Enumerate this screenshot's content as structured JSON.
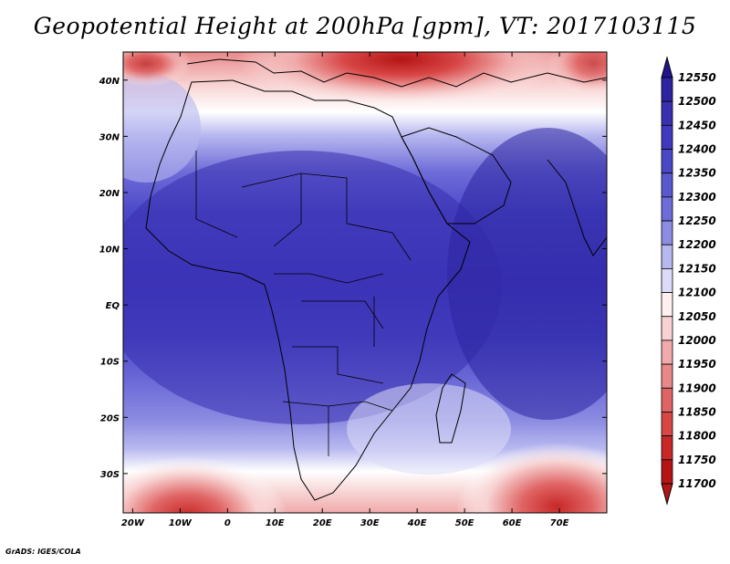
{
  "title": "Geopotential Height at 200hPa [gpm], VT: 2017103115",
  "footer": "GrADS: IGES/COLA",
  "map": {
    "lon_range": [
      -22,
      80
    ],
    "lat_range": [
      -37,
      45
    ],
    "lat_ticks": [
      {
        "label": "40N",
        "value": 40
      },
      {
        "label": "30N",
        "value": 30
      },
      {
        "label": "20N",
        "value": 20
      },
      {
        "label": "10N",
        "value": 10
      },
      {
        "label": "EQ",
        "value": 0
      },
      {
        "label": "10S",
        "value": -10
      },
      {
        "label": "20S",
        "value": -20
      },
      {
        "label": "30S",
        "value": -30
      }
    ],
    "lon_ticks": [
      {
        "label": "20W",
        "value": -20
      },
      {
        "label": "10W",
        "value": -10
      },
      {
        "label": "0",
        "value": 0
      },
      {
        "label": "10E",
        "value": 10
      },
      {
        "label": "20E",
        "value": 20
      },
      {
        "label": "30E",
        "value": 30
      },
      {
        "label": "40E",
        "value": 40
      },
      {
        "label": "50E",
        "value": 50
      },
      {
        "label": "60E",
        "value": 60
      },
      {
        "label": "70E",
        "value": 70
      }
    ]
  },
  "colorbar": {
    "levels": [
      "12550",
      "12500",
      "12450",
      "12400",
      "12350",
      "12300",
      "12250",
      "12200",
      "12150",
      "12100",
      "12050",
      "12000",
      "11950",
      "11900",
      "11850",
      "11800",
      "11750",
      "11700"
    ],
    "colors": [
      "#21148c",
      "#2c24a0",
      "#3830b0",
      "#4038be",
      "#4b48c8",
      "#5a58d0",
      "#6e6cd8",
      "#8c8ce2",
      "#b8b8f0",
      "#dcdcf8",
      "#fff0f0",
      "#f8d2d2",
      "#f0aaaa",
      "#e88888",
      "#e06464",
      "#d84646",
      "#c82828",
      "#b41414"
    ]
  }
}
